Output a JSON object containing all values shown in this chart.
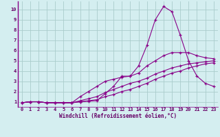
{
  "xlabel": "Windchill (Refroidissement éolien,°C)",
  "x_values": [
    0,
    1,
    2,
    3,
    4,
    5,
    6,
    7,
    8,
    9,
    10,
    11,
    12,
    13,
    14,
    15,
    16,
    17,
    18,
    19,
    20,
    21,
    22,
    23
  ],
  "line1": [
    0.9,
    1.0,
    1.0,
    0.9,
    0.9,
    0.9,
    0.9,
    1.0,
    1.05,
    1.1,
    1.8,
    2.5,
    3.5,
    3.5,
    4.5,
    6.5,
    9.0,
    10.3,
    9.8,
    7.5,
    5.0,
    3.5,
    2.8,
    2.5
  ],
  "line2": [
    0.9,
    1.0,
    1.0,
    0.9,
    0.9,
    0.9,
    0.9,
    1.5,
    2.0,
    2.5,
    3.0,
    3.2,
    3.4,
    3.5,
    3.8,
    4.5,
    5.0,
    5.5,
    5.8,
    5.8,
    5.8,
    5.5,
    5.3,
    5.2
  ],
  "line3": [
    0.9,
    1.0,
    1.0,
    0.9,
    0.9,
    0.9,
    0.9,
    1.1,
    1.3,
    1.5,
    1.9,
    2.2,
    2.5,
    2.8,
    3.0,
    3.3,
    3.7,
    4.0,
    4.3,
    4.5,
    4.7,
    4.8,
    4.9,
    5.0
  ],
  "line4": [
    0.9,
    1.0,
    1.0,
    0.9,
    0.9,
    0.9,
    0.9,
    1.0,
    1.1,
    1.2,
    1.5,
    1.7,
    2.0,
    2.2,
    2.5,
    2.8,
    3.2,
    3.5,
    3.8,
    4.0,
    4.3,
    4.5,
    4.7,
    4.8
  ],
  "line_color": "#880088",
  "bg_color": "#d4eef0",
  "grid_color": "#aacccc",
  "text_color": "#660066",
  "spine_color": "#880088",
  "ylim_min": 0.5,
  "ylim_max": 10.8,
  "xlim_min": -0.5,
  "xlim_max": 23.5,
  "yticks": [
    1,
    2,
    3,
    4,
    5,
    6,
    7,
    8,
    9,
    10
  ],
  "xticks": [
    0,
    1,
    2,
    3,
    4,
    5,
    6,
    7,
    8,
    9,
    10,
    11,
    12,
    13,
    14,
    15,
    16,
    17,
    18,
    19,
    20,
    21,
    22,
    23
  ],
  "tick_fontsize": 5.0,
  "xlabel_fontsize": 5.5
}
